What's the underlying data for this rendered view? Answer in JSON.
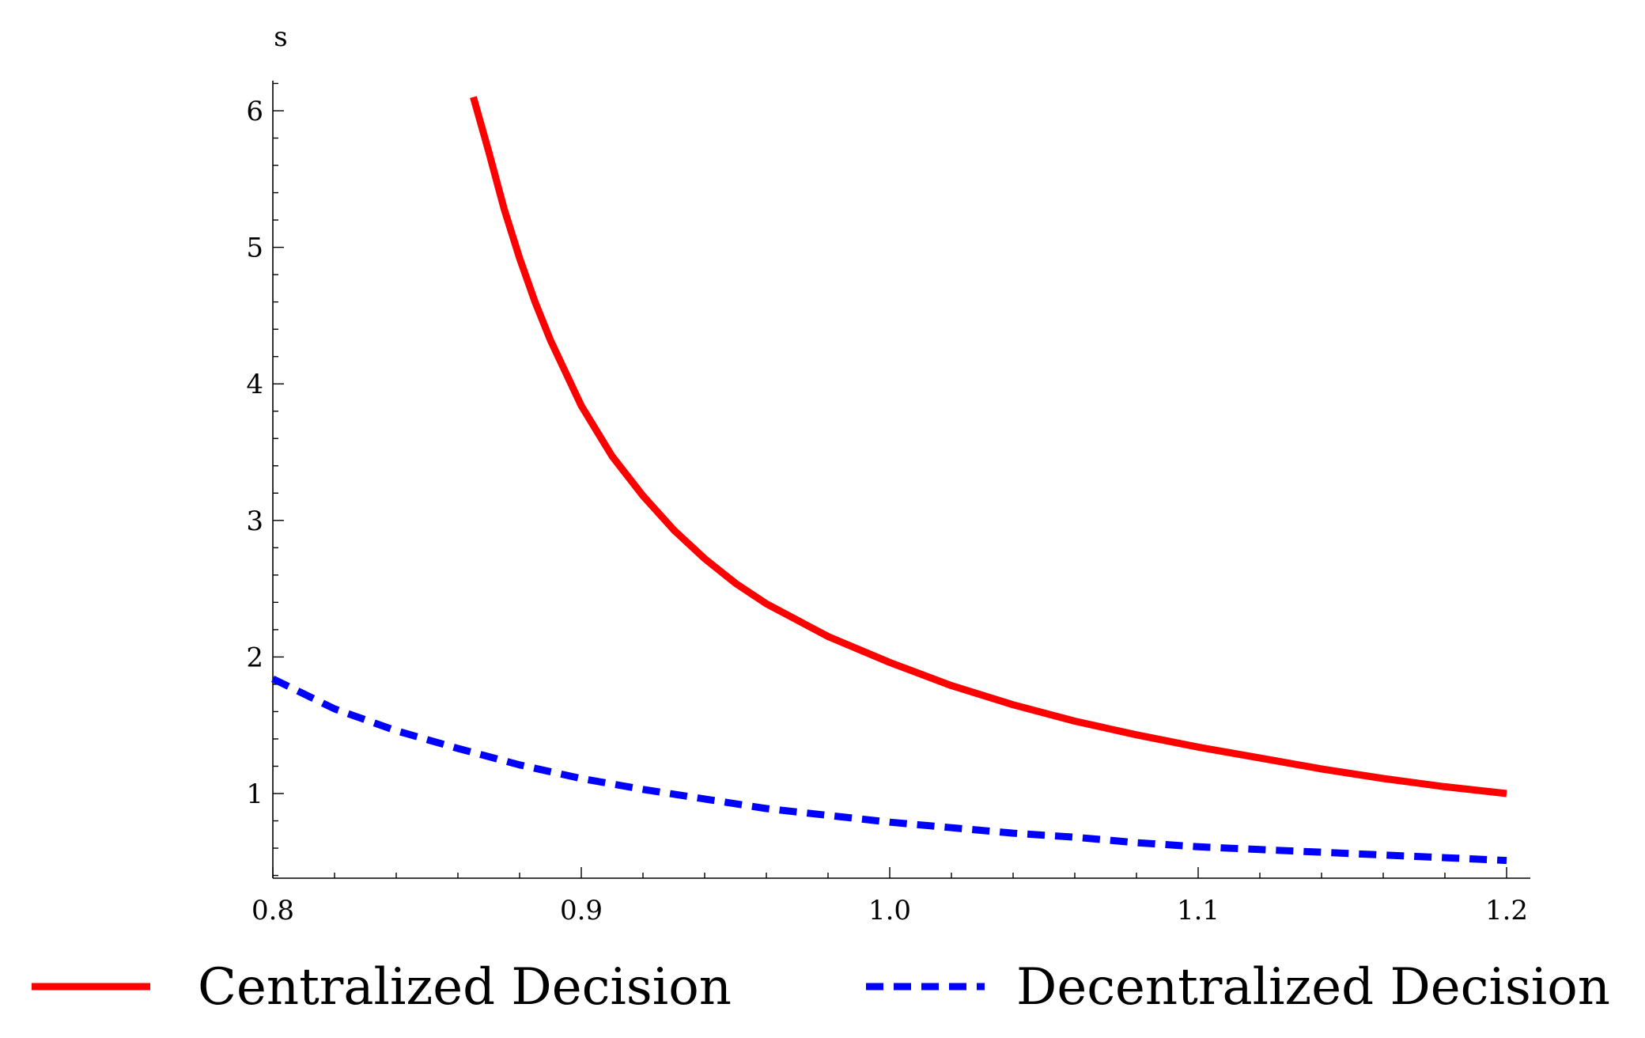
{
  "chart_data": {
    "type": "line",
    "title": "",
    "xlabel": "",
    "ylabel": "s",
    "xlim": [
      0.8,
      1.2
    ],
    "ylim": [
      0.4,
      6.2
    ],
    "x_ticks": [
      0.8,
      0.9,
      1.0,
      1.1,
      1.2
    ],
    "x_tick_labels": [
      "0.8",
      "0.9",
      "1.0",
      "1.1",
      "1.2"
    ],
    "y_ticks": [
      1,
      2,
      3,
      4,
      5,
      6
    ],
    "y_tick_labels": [
      "1",
      "2",
      "3",
      "4",
      "5",
      "6"
    ],
    "grid": false,
    "legend_position": "bottom",
    "series": [
      {
        "name": "Centralized Decision",
        "color": "#ff0000",
        "style": "solid",
        "x": [
          0.865,
          0.87,
          0.875,
          0.88,
          0.885,
          0.89,
          0.9,
          0.91,
          0.92,
          0.93,
          0.94,
          0.95,
          0.96,
          0.98,
          1.0,
          1.02,
          1.04,
          1.06,
          1.08,
          1.1,
          1.12,
          1.14,
          1.16,
          1.18,
          1.2
        ],
        "y": [
          6.1,
          5.7,
          5.28,
          4.92,
          4.6,
          4.32,
          3.84,
          3.47,
          3.18,
          2.93,
          2.72,
          2.54,
          2.39,
          2.15,
          1.96,
          1.79,
          1.65,
          1.53,
          1.43,
          1.34,
          1.26,
          1.18,
          1.11,
          1.05,
          1.0
        ]
      },
      {
        "name": "Decentralized Decision",
        "color": "#0000ff",
        "style": "dashed",
        "x": [
          0.8,
          0.82,
          0.84,
          0.86,
          0.88,
          0.9,
          0.92,
          0.94,
          0.96,
          0.98,
          1.0,
          1.02,
          1.04,
          1.06,
          1.08,
          1.1,
          1.12,
          1.14,
          1.16,
          1.18,
          1.2
        ],
        "y": [
          1.84,
          1.62,
          1.46,
          1.33,
          1.21,
          1.11,
          1.03,
          0.96,
          0.89,
          0.84,
          0.79,
          0.75,
          0.71,
          0.68,
          0.64,
          0.61,
          0.59,
          0.57,
          0.55,
          0.53,
          0.51
        ]
      }
    ]
  }
}
